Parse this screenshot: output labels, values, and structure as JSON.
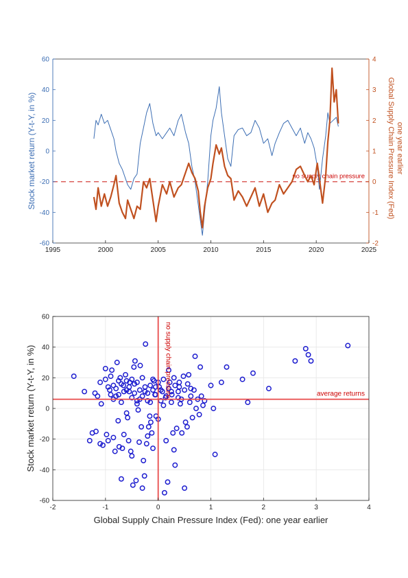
{
  "chart_data": [
    {
      "type": "line",
      "xlim": [
        1995,
        2025
      ],
      "xticks": [
        "1995",
        "2000",
        "2005",
        "2010",
        "2015",
        "2020",
        "2025"
      ],
      "ylabel_left": "Stock market return (Y-t-Y, in %)",
      "ylim_left": [
        -60,
        60
      ],
      "yticks_left": [
        "-60",
        "-40",
        "-20",
        "0",
        "20",
        "40",
        "60"
      ],
      "ylabel_right": "Global Supply Chain Pressure Index (Fed)",
      "ylabel_right2": "one year earlier",
      "ylim_right": [
        -2,
        4
      ],
      "yticks_right": [
        "-2",
        "-1",
        "0",
        "1",
        "2",
        "3",
        "4"
      ],
      "reference_label": "no supply chain pressure",
      "reference_value_right": 0,
      "colors": {
        "stock": "#3b6db3",
        "gscpi": "#c0501f",
        "reference": "#d9534f",
        "reference_text": "#cc0000"
      },
      "series": [
        {
          "axis": "left",
          "x": [
            1998.9,
            1999.1,
            1999.3,
            1999.6,
            1999.9,
            2000.2,
            2000.5,
            2000.8,
            2001.0,
            2001.3,
            2001.6,
            2001.9,
            2002.1,
            2002.4,
            2002.7,
            2003.0,
            2003.3,
            2003.6,
            2003.9,
            2004.2,
            2004.5,
            2004.8,
            2005.0,
            2005.4,
            2005.8,
            2006.1,
            2006.5,
            2006.9,
            2007.2,
            2007.6,
            2007.9,
            2008.2,
            2008.5,
            2008.8,
            2009.0,
            2009.2,
            2009.4,
            2009.7,
            2010.0,
            2010.2,
            2010.5,
            2010.8,
            2011.0,
            2011.3,
            2011.6,
            2011.9,
            2012.2,
            2012.6,
            2013.0,
            2013.4,
            2013.8,
            2014.2,
            2014.6,
            2015.0,
            2015.4,
            2015.8,
            2016.1,
            2016.5,
            2016.9,
            2017.3,
            2017.7,
            2018.1,
            2018.5,
            2018.9,
            2019.2,
            2019.5,
            2019.8,
            2020.1,
            2020.3,
            2020.6,
            2020.9,
            2021.1,
            2021.3,
            2021.6,
            2021.9,
            2022.1
          ],
          "values": [
            8,
            20,
            17,
            24,
            18,
            20,
            14,
            8,
            0,
            -8,
            -12,
            -18,
            -22,
            -25,
            -18,
            -15,
            5,
            15,
            25,
            31,
            18,
            10,
            12,
            8,
            12,
            15,
            10,
            20,
            24,
            12,
            5,
            -10,
            -20,
            -35,
            -45,
            -55,
            -40,
            -20,
            10,
            20,
            28,
            42,
            25,
            10,
            -5,
            -10,
            10,
            14,
            15,
            10,
            12,
            20,
            15,
            5,
            8,
            -3,
            5,
            12,
            18,
            20,
            15,
            10,
            15,
            5,
            12,
            8,
            2,
            -10,
            -25,
            -5,
            10,
            25,
            18,
            20,
            22,
            16
          ]
        },
        {
          "axis": "right",
          "x": [
            1998.9,
            1999.1,
            1999.3,
            1999.6,
            1999.9,
            2000.2,
            2000.5,
            2000.8,
            2001.0,
            2001.3,
            2001.6,
            2001.9,
            2002.1,
            2002.4,
            2002.7,
            2003.0,
            2003.3,
            2003.6,
            2003.9,
            2004.2,
            2004.5,
            2004.8,
            2005.0,
            2005.4,
            2005.8,
            2006.1,
            2006.5,
            2006.9,
            2007.2,
            2007.6,
            2007.9,
            2008.2,
            2008.5,
            2008.8,
            2009.0,
            2009.2,
            2009.4,
            2009.7,
            2010.0,
            2010.2,
            2010.5,
            2010.8,
            2011.0,
            2011.3,
            2011.6,
            2011.9,
            2012.2,
            2012.6,
            2013.0,
            2013.4,
            2013.8,
            2014.2,
            2014.6,
            2015.0,
            2015.4,
            2015.8,
            2016.1,
            2016.5,
            2016.9,
            2017.3,
            2017.7,
            2018.1,
            2018.5,
            2018.9,
            2019.2,
            2019.5,
            2019.8,
            2020.1,
            2020.3,
            2020.6,
            2020.9,
            2021.1,
            2021.3,
            2021.5,
            2021.7,
            2021.9,
            2022.1
          ],
          "values": [
            -0.5,
            -0.9,
            -0.2,
            -0.8,
            -0.4,
            -0.8,
            -0.5,
            -0.1,
            0.2,
            -0.7,
            -1.0,
            -1.2,
            -0.6,
            -0.9,
            -1.2,
            -0.8,
            -0.9,
            0.0,
            -0.2,
            0.1,
            -0.6,
            -1.3,
            -0.8,
            -0.1,
            -0.4,
            0.0,
            -0.5,
            -0.2,
            -0.1,
            0.3,
            0.6,
            0.3,
            0.1,
            -0.3,
            -1.0,
            -1.5,
            -0.8,
            -0.2,
            0.1,
            0.6,
            1.2,
            0.9,
            1.1,
            0.5,
            0.2,
            0.1,
            -0.6,
            -0.3,
            -0.5,
            -0.8,
            -0.5,
            -0.2,
            -0.8,
            -0.4,
            -1.0,
            -0.7,
            -0.6,
            -0.1,
            -0.4,
            -0.2,
            0.0,
            0.4,
            0.5,
            0.2,
            0.0,
            0.2,
            -0.1,
            0.6,
            0.1,
            -0.7,
            0.2,
            1.3,
            2.0,
            3.7,
            2.6,
            3.0,
            1.9
          ]
        }
      ]
    },
    {
      "type": "scatter",
      "xlabel": "Global Supply Chain Pressure Index (Fed): one year earlier",
      "ylabel": "Stock market return (Y-t-Y, in %)",
      "xlim": [
        -2,
        4
      ],
      "ylim": [
        -60,
        60
      ],
      "xticks": [
        "-2",
        "-1",
        "0",
        "1",
        "2",
        "3",
        "4"
      ],
      "yticks": [
        "-60",
        "-40",
        "-20",
        "0",
        "20",
        "40",
        "60"
      ],
      "hline_value": 6,
      "hline_label": "average returns",
      "vline_value": 0,
      "vline_label": "no supply chain pressure",
      "grid": true,
      "colors": {
        "point": "#1c1ccf",
        "line": "#e84a4a",
        "label": "#cc0000"
      },
      "points": [
        [
          -1.6,
          21
        ],
        [
          -1.4,
          11
        ],
        [
          -1.3,
          -21
        ],
        [
          -1.25,
          -16
        ],
        [
          -1.2,
          10
        ],
        [
          -1.18,
          -15
        ],
        [
          -1.15,
          8
        ],
        [
          -1.1,
          -23
        ],
        [
          -1.08,
          3
        ],
        [
          -1.05,
          -24
        ],
        [
          -1.0,
          26
        ],
        [
          -0.98,
          -17
        ],
        [
          -0.95,
          -21
        ],
        [
          -0.92,
          12
        ],
        [
          -0.9,
          9
        ],
        [
          -0.88,
          25
        ],
        [
          -0.85,
          -19
        ],
        [
          -0.82,
          -28
        ],
        [
          -0.8,
          8
        ],
        [
          -0.78,
          30
        ],
        [
          -0.76,
          -8
        ],
        [
          -0.74,
          -25
        ],
        [
          -0.72,
          20
        ],
        [
          -0.7,
          -46
        ],
        [
          -0.68,
          -26
        ],
        [
          -0.66,
          15
        ],
        [
          -0.65,
          -17
        ],
        [
          -0.62,
          22
        ],
        [
          -0.6,
          -3
        ],
        [
          -0.58,
          -6
        ],
        [
          -0.56,
          -21
        ],
        [
          -0.54,
          17
        ],
        [
          -0.52,
          -28
        ],
        [
          -0.5,
          -31
        ],
        [
          -0.48,
          -50
        ],
        [
          -0.46,
          27
        ],
        [
          -0.44,
          31
        ],
        [
          -0.42,
          -47
        ],
        [
          -0.4,
          5
        ],
        [
          -0.38,
          -1
        ],
        [
          -0.36,
          -22
        ],
        [
          -0.34,
          28
        ],
        [
          -0.32,
          -12
        ],
        [
          -0.3,
          -52
        ],
        [
          -0.28,
          -34
        ],
        [
          -0.26,
          -44
        ],
        [
          -0.24,
          42
        ],
        [
          -0.22,
          -23
        ],
        [
          -0.2,
          -18
        ],
        [
          -0.18,
          -12
        ],
        [
          -0.16,
          -5
        ],
        [
          -0.14,
          -9
        ],
        [
          -0.12,
          -16
        ],
        [
          -0.1,
          -26
        ],
        [
          -0.08,
          18
        ],
        [
          -0.06,
          9
        ],
        [
          -0.04,
          -5
        ],
        [
          0.0,
          -7
        ],
        [
          0.05,
          5
        ],
        [
          0.1,
          2
        ],
        [
          0.12,
          -55
        ],
        [
          0.15,
          -21
        ],
        [
          0.18,
          -48
        ],
        [
          0.2,
          25
        ],
        [
          0.22,
          17
        ],
        [
          0.25,
          11
        ],
        [
          0.28,
          -16
        ],
        [
          0.3,
          -27
        ],
        [
          0.32,
          -37
        ],
        [
          0.35,
          -13
        ],
        [
          0.38,
          7
        ],
        [
          0.4,
          14
        ],
        [
          0.42,
          3
        ],
        [
          0.45,
          -16
        ],
        [
          0.48,
          21
        ],
        [
          0.5,
          -52
        ],
        [
          0.52,
          -9
        ],
        [
          0.55,
          -12
        ],
        [
          0.58,
          22
        ],
        [
          0.6,
          4
        ],
        [
          0.62,
          13
        ],
        [
          0.65,
          -6
        ],
        [
          0.68,
          12
        ],
        [
          0.7,
          34
        ],
        [
          0.72,
          0
        ],
        [
          0.75,
          6
        ],
        [
          0.78,
          -4
        ],
        [
          0.8,
          27
        ],
        [
          0.82,
          8
        ],
        [
          0.85,
          2
        ],
        [
          0.88,
          5
        ],
        [
          1.0,
          15
        ],
        [
          1.05,
          0
        ],
        [
          1.08,
          -30
        ],
        [
          1.2,
          17
        ],
        [
          1.3,
          27
        ],
        [
          1.6,
          19
        ],
        [
          1.7,
          4
        ],
        [
          1.8,
          23
        ],
        [
          2.1,
          13
        ],
        [
          2.6,
          31
        ],
        [
          2.8,
          39
        ],
        [
          2.85,
          35
        ],
        [
          2.9,
          31
        ],
        [
          3.6,
          41
        ],
        [
          -1.1,
          17
        ],
        [
          -1.0,
          19
        ],
        [
          -0.95,
          14
        ],
        [
          -0.9,
          21
        ],
        [
          -0.85,
          6
        ],
        [
          -0.8,
          13
        ],
        [
          -0.75,
          9
        ],
        [
          -0.7,
          16
        ],
        [
          -0.65,
          11
        ],
        [
          -0.6,
          18
        ],
        [
          -0.55,
          14
        ],
        [
          -0.5,
          7
        ],
        [
          -0.45,
          10
        ],
        [
          -0.4,
          17
        ],
        [
          -0.35,
          12
        ],
        [
          -0.3,
          8
        ],
        [
          -0.25,
          14
        ],
        [
          -0.2,
          10
        ],
        [
          -0.15,
          15
        ],
        [
          -0.1,
          12
        ],
        [
          -0.05,
          9
        ],
        [
          0.02,
          14
        ],
        [
          0.08,
          11
        ],
        [
          0.14,
          7
        ],
        [
          0.2,
          13
        ],
        [
          0.26,
          9
        ],
        [
          0.32,
          15
        ],
        [
          0.38,
          11
        ],
        [
          0.44,
          6
        ],
        [
          0.5,
          12
        ],
        [
          0.56,
          16
        ],
        [
          0.62,
          8
        ],
        [
          -0.75,
          18
        ],
        [
          -0.7,
          4
        ],
        [
          -0.6,
          12
        ],
        [
          -0.5,
          19
        ],
        [
          -0.4,
          3
        ],
        [
          -0.3,
          20
        ],
        [
          -0.2,
          5
        ],
        [
          -0.1,
          19
        ],
        [
          0.0,
          17
        ],
        [
          0.1,
          19
        ],
        [
          0.3,
          20
        ],
        [
          0.4,
          17
        ],
        [
          -0.85,
          15
        ],
        [
          -0.55,
          11
        ],
        [
          -0.45,
          16
        ],
        [
          -0.35,
          6
        ],
        [
          -0.25,
          11
        ],
        [
          -0.15,
          4
        ],
        [
          -0.05,
          14
        ],
        [
          0.05,
          12
        ],
        [
          0.15,
          8
        ],
        [
          0.25,
          4
        ]
      ]
    }
  ]
}
